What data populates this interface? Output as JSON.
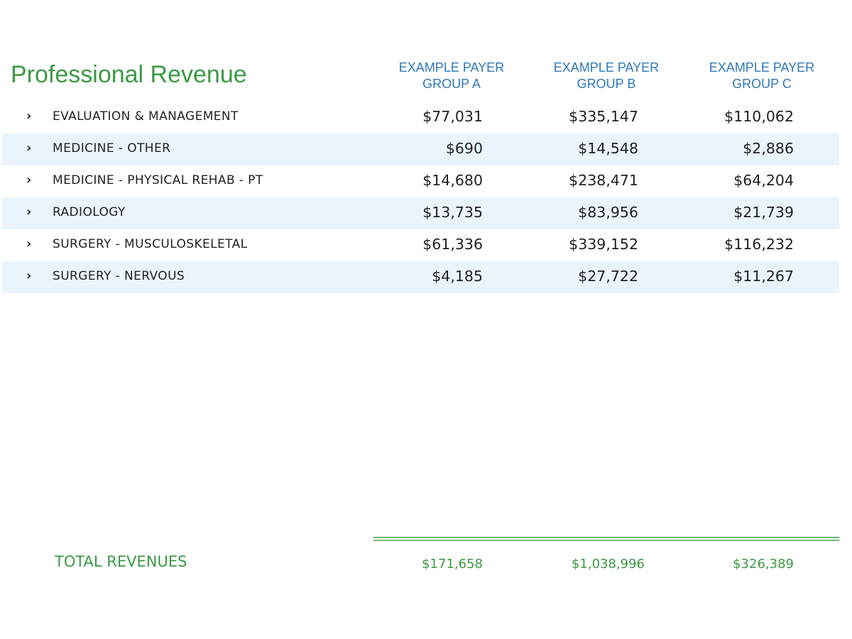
{
  "report": {
    "title": "Professional Revenue",
    "columns": [
      {
        "line1": "EXAMPLE PAYER",
        "line2": "GROUP A"
      },
      {
        "line1": "EXAMPLE PAYER",
        "line2": "GROUP B"
      },
      {
        "line1": "EXAMPLE PAYER",
        "line2": "GROUP C"
      }
    ],
    "expand_icon": "chevron-right-icon",
    "expand_glyph": "›",
    "rows": [
      {
        "label": "EVALUATION & MANAGEMENT",
        "values": [
          "$77,031",
          "$335,147",
          "$110,062"
        ]
      },
      {
        "label": "MEDICINE - OTHER",
        "values": [
          "$690",
          "$14,548",
          "$2,886"
        ]
      },
      {
        "label": "MEDICINE - PHYSICAL REHAB - PT",
        "values": [
          "$14,680",
          "$238,471",
          "$64,204"
        ]
      },
      {
        "label": "RADIOLOGY",
        "values": [
          "$13,735",
          "$83,956",
          "$21,739"
        ]
      },
      {
        "label": "SURGERY - MUSCULOSKELETAL",
        "values": [
          "$61,336",
          "$339,152",
          "$116,232"
        ]
      },
      {
        "label": "SURGERY - NERVOUS",
        "values": [
          "$4,185",
          "$27,722",
          "$11,267"
        ]
      }
    ],
    "totals": {
      "label": "TOTAL REVENUES",
      "values": [
        "$171,658",
        "$1,038,996",
        "$326,389"
      ]
    }
  },
  "colors": {
    "title_green": "#3a9a44",
    "header_blue": "#2f78b7",
    "row_stripe": "#e9f4fd",
    "total_rule": "#6ab86f"
  }
}
